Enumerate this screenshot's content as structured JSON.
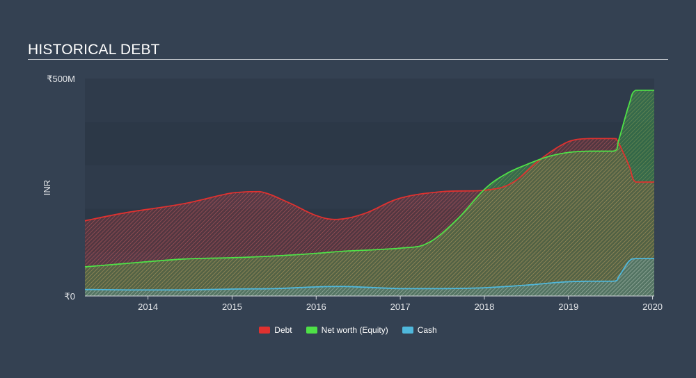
{
  "header": {
    "title": "HISTORICAL DEBT"
  },
  "chart_data": {
    "type": "area",
    "title": "HISTORICAL DEBT",
    "ylabel": "INR",
    "xlabel": "",
    "ylim": [
      0,
      500
    ],
    "xlim": [
      2013.25,
      2020.02
    ],
    "y_unit": "₹M",
    "y_tick_labels": [
      {
        "value": 500,
        "label": "₹500M"
      },
      {
        "value": 0,
        "label": "₹0"
      }
    ],
    "x_ticks": [
      2014,
      2015,
      2016,
      2017,
      2018,
      2019,
      2020
    ],
    "x_tick_labels": [
      "2014",
      "2015",
      "2016",
      "2017",
      "2018",
      "2019",
      "2020"
    ],
    "grid": true,
    "legend_position": "bottom-center",
    "series": [
      {
        "name": "Debt",
        "color": "#e0312f",
        "x": [
          2013.25,
          2013.75,
          2014.42,
          2015.0,
          2015.33,
          2015.67,
          2016.0,
          2016.25,
          2016.58,
          2017.0,
          2017.5,
          2018.0,
          2018.33,
          2018.67,
          2019.0,
          2019.25,
          2019.54,
          2019.58,
          2019.72,
          2019.8,
          2020.02
        ],
        "values": [
          173,
          192,
          212,
          237,
          240,
          215,
          185,
          176,
          190,
          225,
          240,
          243,
          260,
          315,
          355,
          362,
          362,
          358,
          300,
          262,
          262
        ]
      },
      {
        "name": "Net worth (Equity)",
        "color": "#4ee147",
        "x": [
          2013.25,
          2013.75,
          2014.42,
          2015.0,
          2015.5,
          2016.0,
          2016.33,
          2017.0,
          2017.33,
          2017.67,
          2018.0,
          2018.25,
          2018.5,
          2018.75,
          2019.0,
          2019.25,
          2019.54,
          2019.6,
          2019.72,
          2019.8,
          2020.02
        ],
        "values": [
          67,
          75,
          85,
          88,
          92,
          98,
          103,
          110,
          122,
          175,
          245,
          280,
          302,
          320,
          330,
          333,
          333,
          360,
          440,
          473,
          473
        ]
      },
      {
        "name": "Cash",
        "color": "#4fb8dc",
        "x": [
          2013.25,
          2013.75,
          2014.42,
          2015.0,
          2015.5,
          2016.0,
          2016.33,
          2017.0,
          2017.5,
          2018.0,
          2018.5,
          2018.92,
          2019.25,
          2019.54,
          2019.6,
          2019.72,
          2019.8,
          2020.02
        ],
        "values": [
          15,
          14,
          14,
          16,
          17,
          21,
          22,
          17,
          17,
          19,
          25,
          32,
          34,
          34,
          45,
          80,
          86,
          86
        ]
      }
    ]
  }
}
